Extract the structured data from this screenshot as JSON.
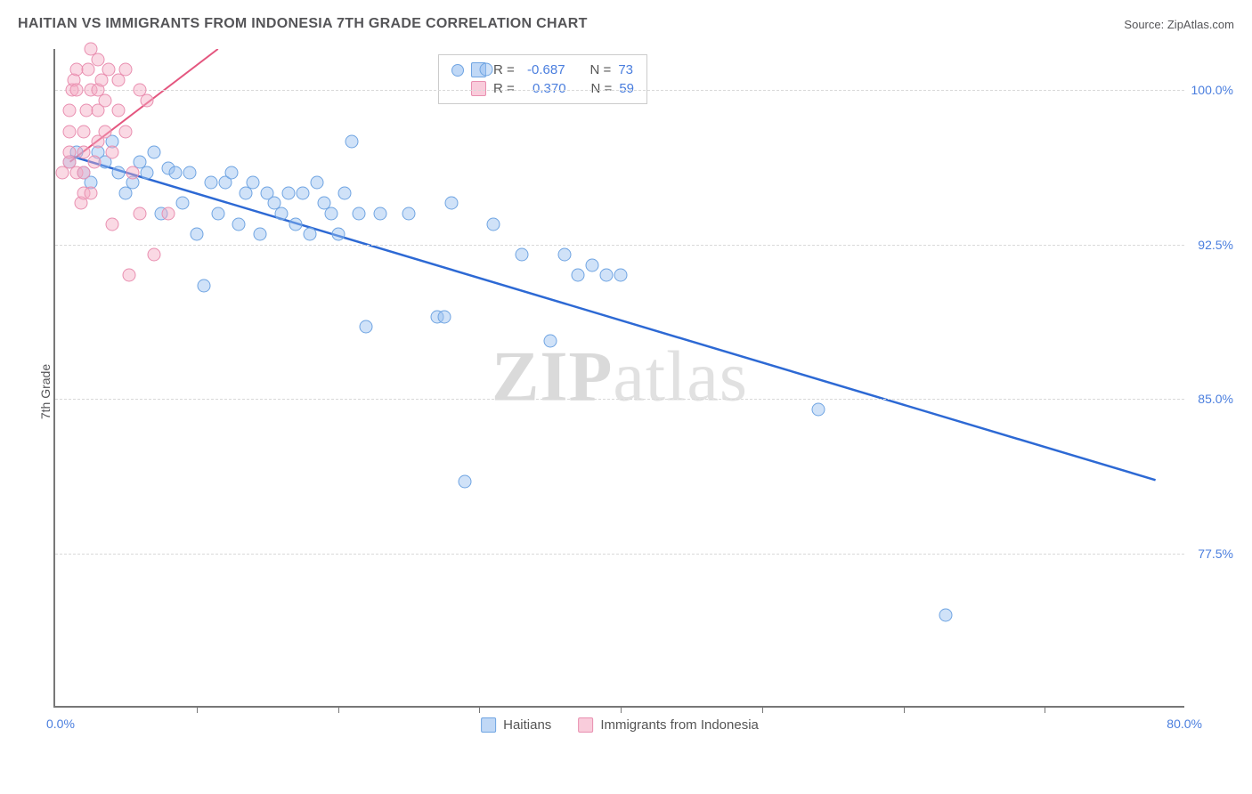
{
  "title": "HAITIAN VS IMMIGRANTS FROM INDONESIA 7TH GRADE CORRELATION CHART",
  "source_label": "Source:",
  "source_name": "ZipAtlas.com",
  "ylabel": "7th Grade",
  "chart": {
    "type": "scatter",
    "xlim": [
      0,
      80
    ],
    "ylim": [
      70,
      102
    ],
    "xlim_labels": [
      "0.0%",
      "80.0%"
    ],
    "ytick_values": [
      77.5,
      85.0,
      92.5,
      100.0
    ],
    "ytick_labels": [
      "77.5%",
      "85.0%",
      "92.5%",
      "100.0%"
    ],
    "xtick_values": [
      10,
      20,
      30,
      40,
      50,
      60,
      70
    ],
    "grid_color": "#d9d9d9",
    "background_color": "#ffffff",
    "axis_color": "#777777",
    "tick_label_color": "#4a7ede",
    "marker_size": 15,
    "series": [
      {
        "name": "Haitians",
        "color_fill": "rgba(150,190,240,0.45)",
        "color_stroke": "#6fa4e2",
        "R": "-0.687",
        "N": "73",
        "trend": {
          "x1": 1,
          "y1": 96.8,
          "x2": 78,
          "y2": 81.0,
          "stroke": "#2d69d4",
          "width": 2.5
        },
        "points": [
          [
            1,
            96.5
          ],
          [
            1.5,
            97
          ],
          [
            2,
            96
          ],
          [
            2.5,
            95.5
          ],
          [
            3,
            97
          ],
          [
            3.5,
            96.5
          ],
          [
            4,
            97.5
          ],
          [
            4.5,
            96
          ],
          [
            5,
            95
          ],
          [
            5.5,
            95.5
          ],
          [
            6,
            96.5
          ],
          [
            6.5,
            96
          ],
          [
            7,
            97
          ],
          [
            7.5,
            94
          ],
          [
            8,
            96.2
          ],
          [
            8.5,
            96
          ],
          [
            9,
            94.5
          ],
          [
            9.5,
            96
          ],
          [
            10,
            93
          ],
          [
            10.5,
            90.5
          ],
          [
            11,
            95.5
          ],
          [
            11.5,
            94
          ],
          [
            12,
            95.5
          ],
          [
            12.5,
            96
          ],
          [
            13,
            93.5
          ],
          [
            13.5,
            95
          ],
          [
            14,
            95.5
          ],
          [
            14.5,
            93
          ],
          [
            15,
            95
          ],
          [
            15.5,
            94.5
          ],
          [
            16,
            94
          ],
          [
            16.5,
            95
          ],
          [
            17,
            93.5
          ],
          [
            17.5,
            95
          ],
          [
            18,
            93
          ],
          [
            18.5,
            95.5
          ],
          [
            19,
            94.5
          ],
          [
            19.5,
            94
          ],
          [
            20,
            93
          ],
          [
            20.5,
            95
          ],
          [
            21,
            97.5
          ],
          [
            21.5,
            94
          ],
          [
            22,
            88.5
          ],
          [
            23,
            94
          ],
          [
            25,
            94
          ],
          [
            27,
            89
          ],
          [
            27.5,
            89
          ],
          [
            28,
            94.5
          ],
          [
            29,
            81
          ],
          [
            31,
            93.5
          ],
          [
            33,
            92
          ],
          [
            35,
            87.8
          ],
          [
            36,
            92
          ],
          [
            37,
            91
          ],
          [
            38,
            91.5
          ],
          [
            39,
            91
          ],
          [
            40,
            91
          ],
          [
            54,
            84.5
          ],
          [
            63,
            74.5
          ],
          [
            30.5,
            101
          ]
        ]
      },
      {
        "name": "Immigrants from Indonesia",
        "color_fill": "rgba(245,170,195,0.45)",
        "color_stroke": "#e98fb0",
        "R": "0.370",
        "N": "59",
        "trend": {
          "x1": 1,
          "y1": 96.5,
          "x2": 11.5,
          "y2": 102,
          "stroke": "#e4567f",
          "width": 2
        },
        "points": [
          [
            0.5,
            96
          ],
          [
            1,
            96.5
          ],
          [
            1,
            97
          ],
          [
            1,
            98
          ],
          [
            1,
            99
          ],
          [
            1.2,
            100
          ],
          [
            1.3,
            100.5
          ],
          [
            1.5,
            100
          ],
          [
            1.5,
            101
          ],
          [
            1.5,
            96
          ],
          [
            1.8,
            94.5
          ],
          [
            2,
            95
          ],
          [
            2,
            96
          ],
          [
            2,
            97
          ],
          [
            2,
            98
          ],
          [
            2.2,
            99
          ],
          [
            2.3,
            101
          ],
          [
            2.5,
            100
          ],
          [
            2.5,
            102
          ],
          [
            2.5,
            95
          ],
          [
            2.8,
            96.5
          ],
          [
            3,
            97.5
          ],
          [
            3,
            99
          ],
          [
            3,
            100
          ],
          [
            3,
            101.5
          ],
          [
            3.3,
            100.5
          ],
          [
            3.5,
            98
          ],
          [
            3.5,
            99.5
          ],
          [
            3.8,
            101
          ],
          [
            4,
            97
          ],
          [
            4,
            93.5
          ],
          [
            4.5,
            99
          ],
          [
            4.5,
            100.5
          ],
          [
            5,
            98
          ],
          [
            5,
            101
          ],
          [
            5.2,
            91
          ],
          [
            5.5,
            96
          ],
          [
            6,
            94
          ],
          [
            6,
            100
          ],
          [
            6.5,
            99.5
          ],
          [
            7,
            92
          ],
          [
            8,
            94
          ]
        ]
      }
    ]
  },
  "legend_top": {
    "r_label": "R =",
    "n_label": "N ="
  },
  "legend_bottom": {
    "items": [
      "Haitians",
      "Immigrants from Indonesia"
    ]
  },
  "watermark": {
    "part1": "ZIP",
    "part2": "atlas"
  }
}
